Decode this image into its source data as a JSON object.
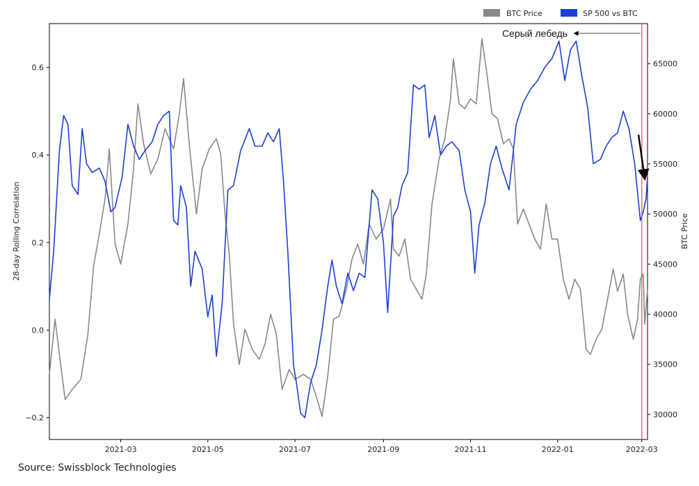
{
  "chart_data": {
    "type": "line",
    "title": "",
    "source": "Source: Swissblock Technologies",
    "ylabel_left": "28-day Rolling Correlation",
    "ylabel_right": "BTC Price",
    "x_range": [
      "2021-01-10",
      "2022-03-05"
    ],
    "x_ticks": [
      "2021-03",
      "2021-05",
      "2021-07",
      "2021-09",
      "2021-11",
      "2022-01",
      "2022-03"
    ],
    "y_left_range": [
      -0.25,
      0.7
    ],
    "y_left_ticks": [
      "−0.2",
      "0.0",
      "0.2",
      "0.4",
      "0.6"
    ],
    "y_right_range": [
      27500,
      69000
    ],
    "y_right_ticks": [
      "30000",
      "35000",
      "40000",
      "45000",
      "50000",
      "55000",
      "60000",
      "65000"
    ],
    "grid": false,
    "legend_position": "top-right, outside plot",
    "legend": [
      "BTC Price",
      "SP 500 vs BTC"
    ],
    "annotation": {
      "text": "Серый лебедь",
      "target_date": "2022-03-01",
      "vertical_line_color": "#e05050"
    },
    "series": [
      {
        "name": "BTC Price",
        "axis": "right",
        "color": "#888888",
        "points": [
          [
            "2021-01-10",
            34000
          ],
          [
            "2021-01-14",
            39500
          ],
          [
            "2021-01-17",
            36000
          ],
          [
            "2021-01-21",
            31500
          ],
          [
            "2021-01-26",
            32500
          ],
          [
            "2021-02-01",
            33500
          ],
          [
            "2021-02-06",
            38000
          ],
          [
            "2021-02-10",
            44800
          ],
          [
            "2021-02-14",
            48000
          ],
          [
            "2021-02-18",
            51500
          ],
          [
            "2021-02-21",
            56500
          ],
          [
            "2021-02-25",
            47000
          ],
          [
            "2021-03-01",
            45000
          ],
          [
            "2021-03-06",
            49000
          ],
          [
            "2021-03-10",
            54500
          ],
          [
            "2021-03-13",
            61000
          ],
          [
            "2021-03-17",
            57000
          ],
          [
            "2021-03-22",
            54000
          ],
          [
            "2021-03-27",
            55500
          ],
          [
            "2021-04-01",
            58500
          ],
          [
            "2021-04-07",
            56500
          ],
          [
            "2021-04-11",
            60000
          ],
          [
            "2021-04-14",
            63500
          ],
          [
            "2021-04-18",
            57000
          ],
          [
            "2021-04-23",
            50000
          ],
          [
            "2021-04-27",
            54500
          ],
          [
            "2021-05-02",
            56500
          ],
          [
            "2021-05-07",
            57500
          ],
          [
            "2021-05-10",
            56000
          ],
          [
            "2021-05-13",
            50000
          ],
          [
            "2021-05-16",
            46000
          ],
          [
            "2021-05-19",
            39000
          ],
          [
            "2021-05-23",
            35000
          ],
          [
            "2021-05-27",
            38500
          ],
          [
            "2021-06-01",
            36500
          ],
          [
            "2021-06-06",
            35500
          ],
          [
            "2021-06-10",
            37000
          ],
          [
            "2021-06-14",
            40000
          ],
          [
            "2021-06-18",
            38000
          ],
          [
            "2021-06-22",
            32500
          ],
          [
            "2021-06-27",
            34500
          ],
          [
            "2021-07-01",
            33500
          ],
          [
            "2021-07-07",
            34000
          ],
          [
            "2021-07-12",
            33500
          ],
          [
            "2021-07-16",
            31800
          ],
          [
            "2021-07-20",
            29800
          ],
          [
            "2021-07-24",
            33800
          ],
          [
            "2021-07-28",
            39500
          ],
          [
            "2021-08-01",
            39800
          ],
          [
            "2021-08-06",
            42500
          ],
          [
            "2021-08-10",
            45500
          ],
          [
            "2021-08-14",
            47000
          ],
          [
            "2021-08-18",
            45000
          ],
          [
            "2021-08-22",
            49000
          ],
          [
            "2021-08-27",
            47500
          ],
          [
            "2021-09-01",
            48500
          ],
          [
            "2021-09-06",
            51500
          ],
          [
            "2021-09-08",
            46500
          ],
          [
            "2021-09-12",
            45800
          ],
          [
            "2021-09-16",
            47500
          ],
          [
            "2021-09-20",
            43500
          ],
          [
            "2021-09-24",
            42500
          ],
          [
            "2021-09-28",
            41500
          ],
          [
            "2021-10-01",
            44000
          ],
          [
            "2021-10-05",
            51000
          ],
          [
            "2021-10-10",
            55500
          ],
          [
            "2021-10-14",
            57500
          ],
          [
            "2021-10-18",
            61500
          ],
          [
            "2021-10-20",
            65500
          ],
          [
            "2021-10-24",
            61000
          ],
          [
            "2021-10-28",
            60500
          ],
          [
            "2021-11-01",
            61500
          ],
          [
            "2021-11-05",
            61000
          ],
          [
            "2021-11-09",
            67500
          ],
          [
            "2021-11-12",
            64500
          ],
          [
            "2021-11-16",
            60000
          ],
          [
            "2021-11-20",
            59500
          ],
          [
            "2021-11-24",
            57000
          ],
          [
            "2021-11-28",
            57500
          ],
          [
            "2021-12-01",
            56500
          ],
          [
            "2021-12-04",
            49000
          ],
          [
            "2021-12-08",
            50500
          ],
          [
            "2021-12-12",
            49000
          ],
          [
            "2021-12-16",
            47500
          ],
          [
            "2021-12-20",
            46500
          ],
          [
            "2021-12-24",
            51000
          ],
          [
            "2021-12-28",
            47500
          ],
          [
            "2022-01-01",
            47500
          ],
          [
            "2022-01-05",
            43500
          ],
          [
            "2022-01-09",
            41500
          ],
          [
            "2022-01-13",
            43500
          ],
          [
            "2022-01-17",
            42500
          ],
          [
            "2022-01-21",
            36500
          ],
          [
            "2022-01-24",
            36000
          ],
          [
            "2022-01-28",
            37500
          ],
          [
            "2022-02-01",
            38500
          ],
          [
            "2022-02-05",
            41500
          ],
          [
            "2022-02-09",
            44500
          ],
          [
            "2022-02-12",
            42300
          ],
          [
            "2022-02-16",
            44000
          ],
          [
            "2022-02-19",
            40000
          ],
          [
            "2022-02-23",
            37500
          ],
          [
            "2022-02-26",
            39500
          ],
          [
            "2022-02-28",
            43500
          ],
          [
            "2022-03-02",
            44000
          ],
          [
            "2022-03-03",
            39000
          ],
          [
            "2022-03-05",
            42500
          ]
        ]
      },
      {
        "name": "SP 500 vs BTC",
        "axis": "left",
        "color": "#1a3fd6",
        "points": [
          [
            "2021-01-10",
            0.07
          ],
          [
            "2021-01-13",
            0.18
          ],
          [
            "2021-01-17",
            0.41
          ],
          [
            "2021-01-20",
            0.49
          ],
          [
            "2021-01-23",
            0.47
          ],
          [
            "2021-01-26",
            0.33
          ],
          [
            "2021-01-30",
            0.31
          ],
          [
            "2021-02-02",
            0.46
          ],
          [
            "2021-02-05",
            0.38
          ],
          [
            "2021-02-09",
            0.36
          ],
          [
            "2021-02-14",
            0.37
          ],
          [
            "2021-02-18",
            0.34
          ],
          [
            "2021-02-22",
            0.27
          ],
          [
            "2021-02-25",
            0.28
          ],
          [
            "2021-03-02",
            0.35
          ],
          [
            "2021-03-06",
            0.47
          ],
          [
            "2021-03-10",
            0.42
          ],
          [
            "2021-03-14",
            0.39
          ],
          [
            "2021-03-18",
            0.41
          ],
          [
            "2021-03-23",
            0.43
          ],
          [
            "2021-03-27",
            0.47
          ],
          [
            "2021-03-31",
            0.49
          ],
          [
            "2021-04-04",
            0.5
          ],
          [
            "2021-04-07",
            0.25
          ],
          [
            "2021-04-10",
            0.24
          ],
          [
            "2021-04-12",
            0.33
          ],
          [
            "2021-04-16",
            0.28
          ],
          [
            "2021-04-19",
            0.1
          ],
          [
            "2021-04-22",
            0.18
          ],
          [
            "2021-04-27",
            0.14
          ],
          [
            "2021-05-01",
            0.03
          ],
          [
            "2021-05-04",
            0.08
          ],
          [
            "2021-05-07",
            -0.06
          ],
          [
            "2021-05-11",
            0.06
          ],
          [
            "2021-05-15",
            0.32
          ],
          [
            "2021-05-19",
            0.33
          ],
          [
            "2021-05-24",
            0.41
          ],
          [
            "2021-05-30",
            0.46
          ],
          [
            "2021-06-03",
            0.42
          ],
          [
            "2021-06-08",
            0.42
          ],
          [
            "2021-06-12",
            0.45
          ],
          [
            "2021-06-16",
            0.43
          ],
          [
            "2021-06-20",
            0.46
          ],
          [
            "2021-06-23",
            0.34
          ],
          [
            "2021-06-26",
            0.18
          ],
          [
            "2021-06-30",
            -0.08
          ],
          [
            "2021-07-02",
            -0.12
          ],
          [
            "2021-07-05",
            -0.19
          ],
          [
            "2021-07-08",
            -0.2
          ],
          [
            "2021-07-12",
            -0.12
          ],
          [
            "2021-07-16",
            -0.08
          ],
          [
            "2021-07-20",
            0.0
          ],
          [
            "2021-07-24",
            0.1
          ],
          [
            "2021-07-27",
            0.16
          ],
          [
            "2021-07-30",
            0.1
          ],
          [
            "2021-08-03",
            0.06
          ],
          [
            "2021-08-07",
            0.13
          ],
          [
            "2021-08-11",
            0.09
          ],
          [
            "2021-08-15",
            0.13
          ],
          [
            "2021-08-19",
            0.12
          ],
          [
            "2021-08-24",
            0.32
          ],
          [
            "2021-08-28",
            0.3
          ],
          [
            "2021-09-01",
            0.2
          ],
          [
            "2021-09-04",
            0.04
          ],
          [
            "2021-09-08",
            0.26
          ],
          [
            "2021-09-11",
            0.28
          ],
          [
            "2021-09-14",
            0.33
          ],
          [
            "2021-09-18",
            0.36
          ],
          [
            "2021-09-22",
            0.56
          ],
          [
            "2021-09-26",
            0.55
          ],
          [
            "2021-09-30",
            0.56
          ],
          [
            "2021-10-03",
            0.44
          ],
          [
            "2021-10-07",
            0.49
          ],
          [
            "2021-10-11",
            0.4
          ],
          [
            "2021-10-15",
            0.42
          ],
          [
            "2021-10-19",
            0.43
          ],
          [
            "2021-10-24",
            0.41
          ],
          [
            "2021-10-28",
            0.32
          ],
          [
            "2021-11-01",
            0.27
          ],
          [
            "2021-11-04",
            0.13
          ],
          [
            "2021-11-07",
            0.24
          ],
          [
            "2021-11-11",
            0.29
          ],
          [
            "2021-11-15",
            0.38
          ],
          [
            "2021-11-19",
            0.42
          ],
          [
            "2021-11-23",
            0.37
          ],
          [
            "2021-11-28",
            0.32
          ],
          [
            "2021-12-03",
            0.47
          ],
          [
            "2021-12-08",
            0.52
          ],
          [
            "2021-12-13",
            0.55
          ],
          [
            "2021-12-18",
            0.57
          ],
          [
            "2021-12-23",
            0.6
          ],
          [
            "2021-12-28",
            0.62
          ],
          [
            "2022-01-02",
            0.66
          ],
          [
            "2022-01-06",
            0.57
          ],
          [
            "2022-01-10",
            0.64
          ],
          [
            "2022-01-14",
            0.66
          ],
          [
            "2022-01-18",
            0.58
          ],
          [
            "2022-01-22",
            0.51
          ],
          [
            "2022-01-26",
            0.38
          ],
          [
            "2022-01-31",
            0.39
          ],
          [
            "2022-02-04",
            0.42
          ],
          [
            "2022-02-08",
            0.44
          ],
          [
            "2022-02-12",
            0.45
          ],
          [
            "2022-02-16",
            0.5
          ],
          [
            "2022-02-20",
            0.46
          ],
          [
            "2022-02-24",
            0.38
          ],
          [
            "2022-02-28",
            0.25
          ],
          [
            "2022-03-02",
            0.27
          ],
          [
            "2022-03-04",
            0.3
          ],
          [
            "2022-03-05",
            0.35
          ]
        ]
      }
    ]
  }
}
